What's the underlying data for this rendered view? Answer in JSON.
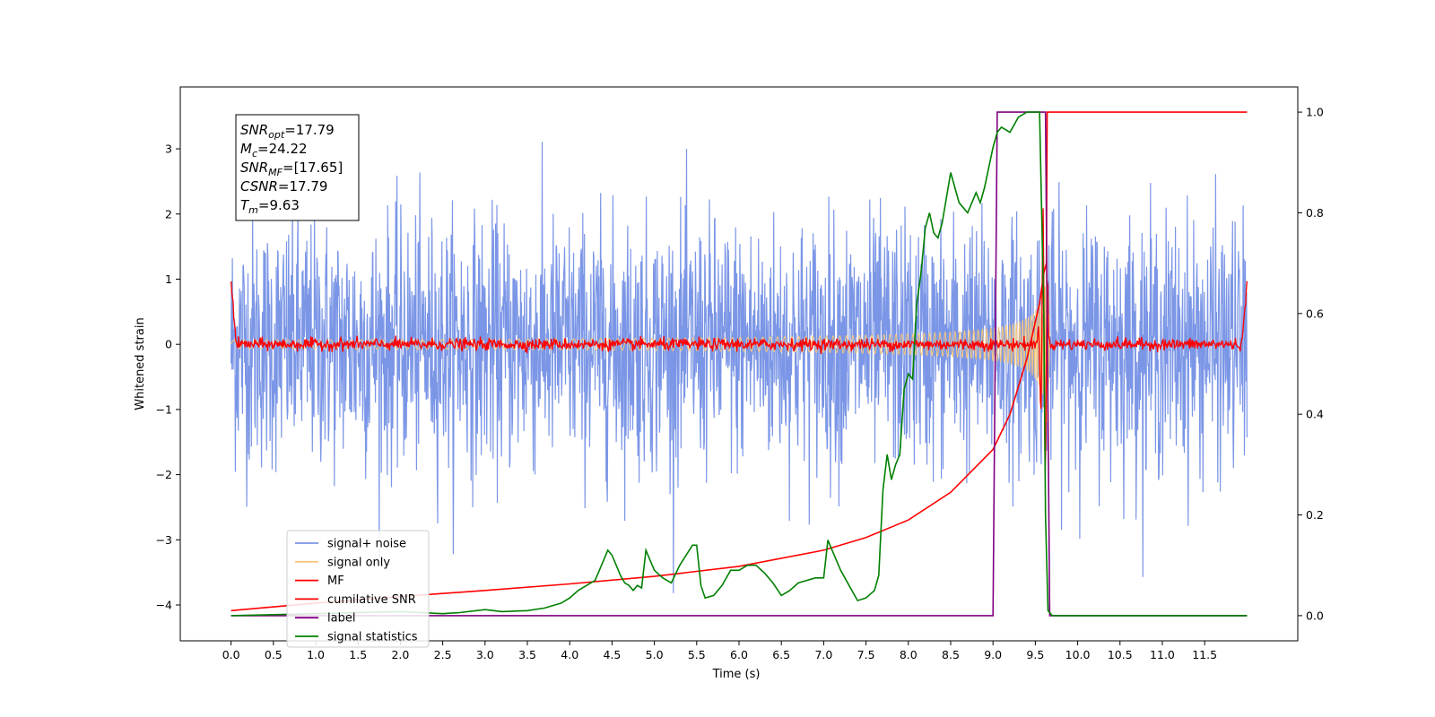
{
  "chart_data": {
    "type": "line",
    "title": "",
    "xlabel": "Time (s)",
    "ylabel": "Whitened strain",
    "xlim": [
      -0.6,
      12.6
    ],
    "ylim": [
      -4.55,
      3.95
    ],
    "y2lim": [
      -0.05,
      1.05
    ],
    "xticks": [
      "0.0",
      "0.5",
      "1.0",
      "1.5",
      "2.0",
      "2.5",
      "3.0",
      "3.5",
      "4.0",
      "4.5",
      "5.0",
      "5.5",
      "6.0",
      "6.5",
      "7.0",
      "7.5",
      "8.0",
      "8.5",
      "9.0",
      "9.5",
      "10.0",
      "10.5",
      "11.0",
      "11.5"
    ],
    "yticks": [
      "3",
      "2",
      "1",
      "0",
      "−1",
      "−2",
      "−3",
      "−4"
    ],
    "y2ticks": [
      "1.0",
      "0.8",
      "0.6",
      "0.4",
      "0.2",
      "0.0"
    ],
    "grid": false,
    "legend_position": "lower-left",
    "info_box": {
      "lines": [
        {
          "sym": "SNR",
          "sub": "opt",
          "val": "=17.79"
        },
        {
          "sym": "M",
          "sub": "c",
          "val": "=24.22"
        },
        {
          "sym": "SNR",
          "sub": "MF",
          "val": "=[17.65]"
        },
        {
          "sym": "CSNR",
          "sub": "",
          "val": "=17.79"
        },
        {
          "sym": "T",
          "sub": "m",
          "val": "=9.63"
        }
      ]
    },
    "series": [
      {
        "name": "signal+ noise",
        "axis": "left",
        "color": "#7b96e6",
        "kind": "noise",
        "x_range": [
          0,
          12
        ],
        "amplitude_std": 0.95
      },
      {
        "name": "signal only",
        "axis": "left",
        "color": "#f5c77e",
        "kind": "chirp",
        "x_range": [
          0,
          9.68
        ],
        "peak_time": 9.63
      },
      {
        "name": "MF",
        "axis": "left",
        "color": "#ff0000",
        "kind": "mf",
        "x_range": [
          0,
          12
        ]
      },
      {
        "name": "cumilative SNR",
        "axis": "right",
        "color": "#ff0000",
        "x": [
          0,
          1,
          2,
          3,
          4,
          5,
          6,
          7,
          7.5,
          8,
          8.5,
          9,
          9.2,
          9.4,
          9.55,
          9.6,
          9.63,
          9.64,
          12
        ],
        "y": [
          0.01,
          0.025,
          0.038,
          0.05,
          0.063,
          0.078,
          0.098,
          0.13,
          0.155,
          0.19,
          0.245,
          0.33,
          0.4,
          0.51,
          0.62,
          0.68,
          0.7,
          1.0,
          1.0
        ]
      },
      {
        "name": "label",
        "axis": "right",
        "color": "#800080",
        "x": [
          0,
          9.0,
          9.05,
          9.62,
          9.67,
          12
        ],
        "y": [
          0,
          0,
          1,
          1,
          0,
          0
        ]
      },
      {
        "name": "signal statistics",
        "axis": "right",
        "color": "#008000",
        "x": [
          0,
          0.5,
          1,
          1.5,
          2,
          2.5,
          2.7,
          3,
          3.2,
          3.5,
          3.7,
          3.9,
          4.0,
          4.1,
          4.2,
          4.3,
          4.35,
          4.45,
          4.5,
          4.6,
          4.65,
          4.7,
          4.75,
          4.8,
          4.85,
          4.9,
          5.0,
          5.1,
          5.2,
          5.3,
          5.45,
          5.5,
          5.55,
          5.6,
          5.7,
          5.8,
          5.9,
          6.0,
          6.1,
          6.2,
          6.3,
          6.4,
          6.5,
          6.6,
          6.7,
          6.8,
          6.9,
          7.0,
          7.05,
          7.1,
          7.2,
          7.3,
          7.4,
          7.5,
          7.6,
          7.65,
          7.7,
          7.75,
          7.8,
          7.85,
          7.9,
          7.95,
          8.0,
          8.05,
          8.1,
          8.15,
          8.2,
          8.25,
          8.3,
          8.35,
          8.4,
          8.5,
          8.6,
          8.7,
          8.75,
          8.8,
          8.85,
          8.9,
          9.0,
          9.05,
          9.1,
          9.2,
          9.3,
          9.4,
          9.5,
          9.55,
          9.6,
          9.62,
          9.65,
          9.7,
          10,
          11,
          11.5,
          12
        ],
        "y": [
          0,
          0.002,
          0.004,
          0.006,
          0.008,
          0.004,
          0.006,
          0.012,
          0.008,
          0.01,
          0.015,
          0.025,
          0.035,
          0.05,
          0.06,
          0.07,
          0.09,
          0.13,
          0.12,
          0.08,
          0.065,
          0.06,
          0.05,
          0.06,
          0.055,
          0.13,
          0.09,
          0.075,
          0.065,
          0.1,
          0.14,
          0.14,
          0.06,
          0.035,
          0.04,
          0.06,
          0.09,
          0.09,
          0.1,
          0.1,
          0.085,
          0.065,
          0.04,
          0.05,
          0.065,
          0.07,
          0.075,
          0.075,
          0.15,
          0.13,
          0.09,
          0.06,
          0.03,
          0.035,
          0.05,
          0.08,
          0.25,
          0.32,
          0.27,
          0.3,
          0.32,
          0.45,
          0.48,
          0.47,
          0.62,
          0.68,
          0.77,
          0.8,
          0.76,
          0.75,
          0.78,
          0.88,
          0.82,
          0.8,
          0.82,
          0.84,
          0.82,
          0.85,
          0.93,
          0.96,
          0.97,
          0.96,
          0.99,
          1.0,
          1.0,
          1.0,
          0.6,
          0.2,
          0.01,
          0.0,
          0.0,
          0.0,
          0.0,
          0.0
        ]
      }
    ]
  }
}
